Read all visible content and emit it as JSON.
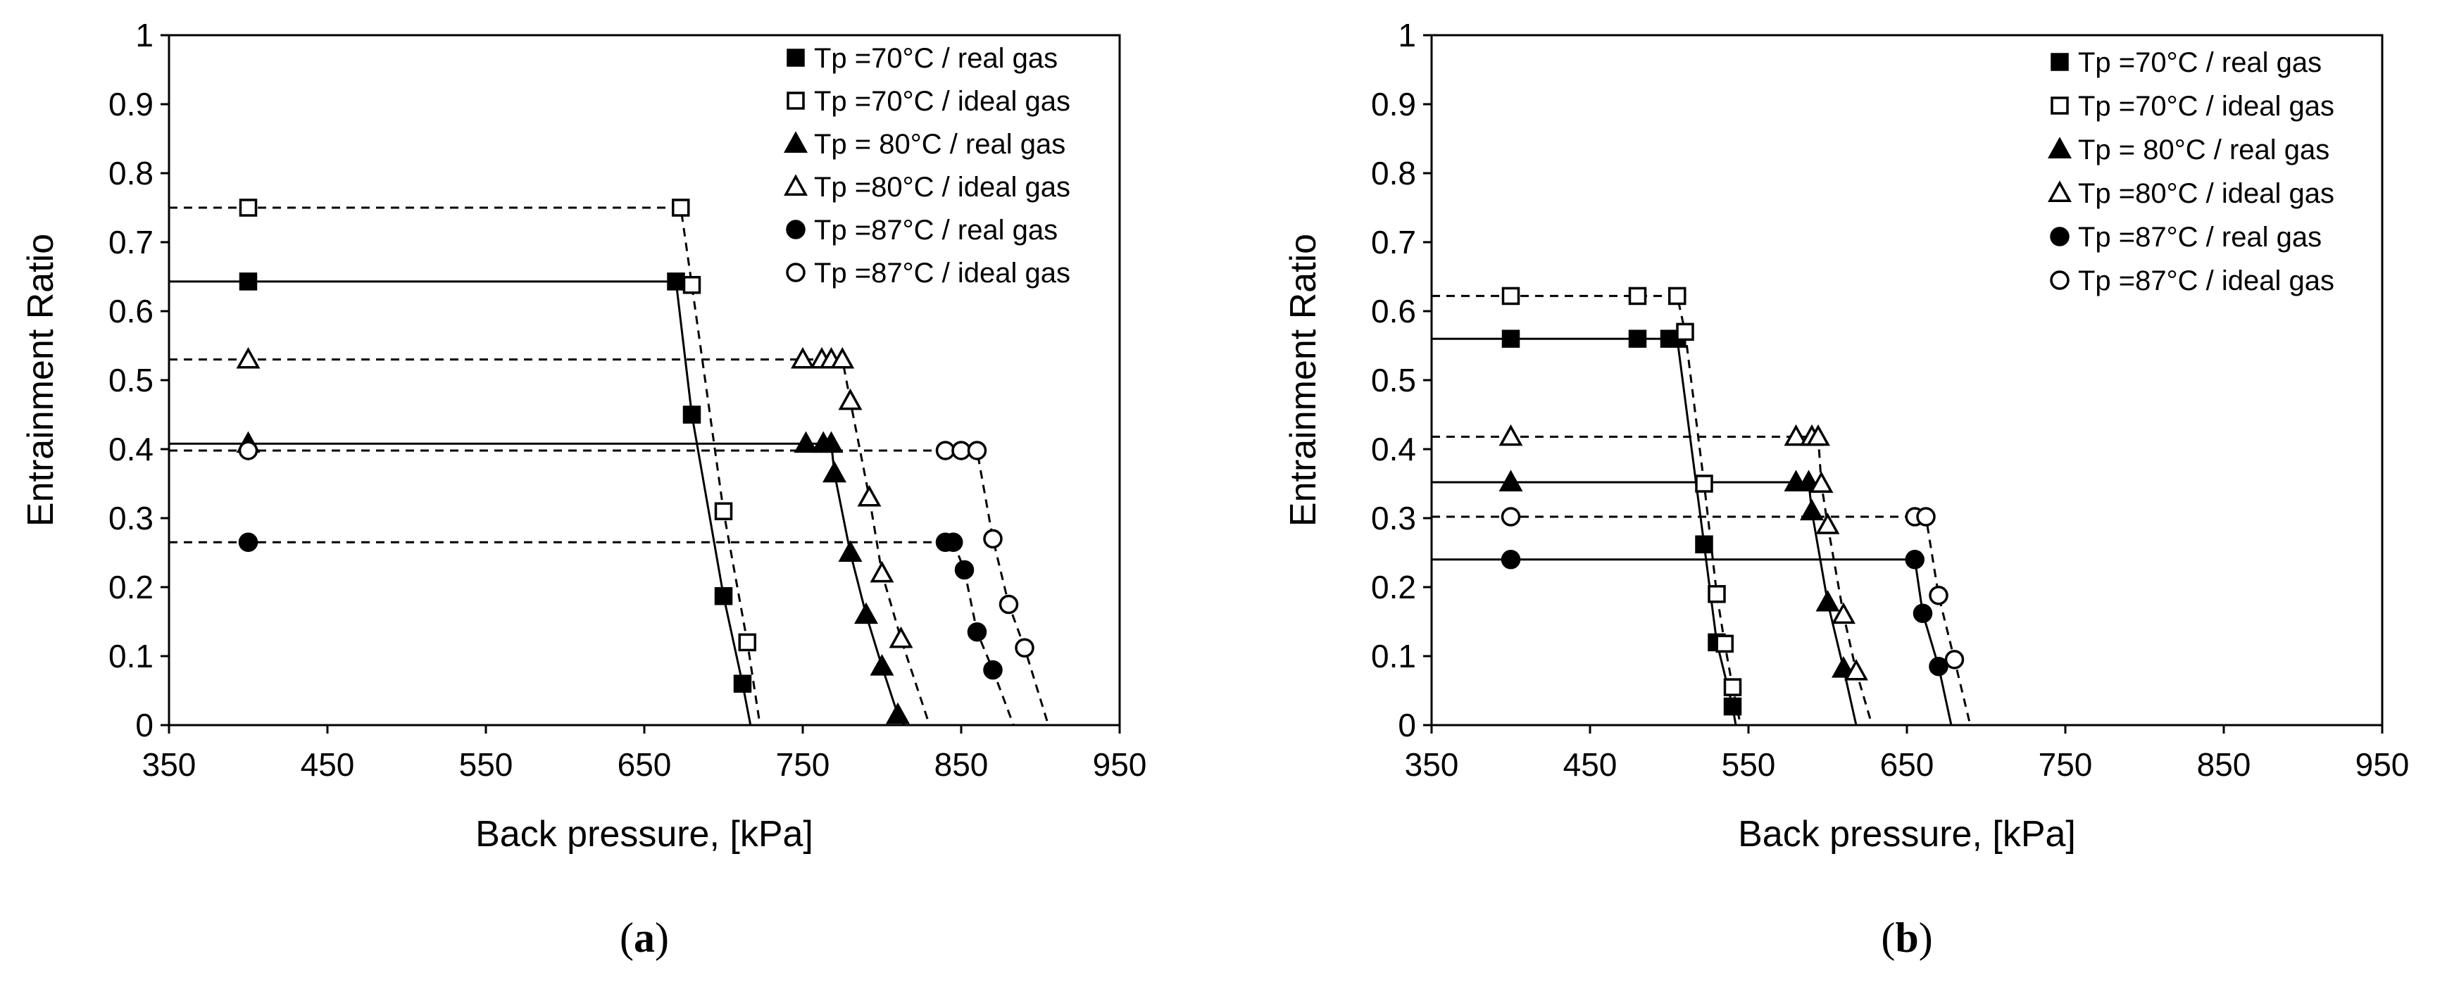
{
  "chart_data": [
    {
      "type": "line",
      "panel_label": "(a)",
      "panel_label_parts": [
        "(",
        "a",
        ")"
      ],
      "xlabel": "Back pressure, [kPa]",
      "ylabel": "Entrainment Ratio",
      "xlim": [
        350,
        950
      ],
      "ylim": [
        0,
        1
      ],
      "xticks": [
        350,
        450,
        550,
        650,
        750,
        850,
        950
      ],
      "yticks": [
        0,
        0.1,
        0.2,
        0.3,
        0.4,
        0.5,
        0.6,
        0.7,
        0.8,
        0.9,
        1
      ],
      "ytick_labels": [
        "0",
        "0.1",
        "0.2",
        "0.3",
        "0.4",
        "0.5",
        "0.6",
        "0.7",
        "0.8",
        "0.9",
        "1"
      ],
      "grid": false,
      "legend_position": "top-right",
      "series": [
        {
          "name": "Tp =70°C / real gas",
          "marker": "square",
          "filled": true,
          "dash": false,
          "points": [
            [
              400,
              0.643
            ],
            [
              670,
              0.643
            ],
            [
              680,
              0.45
            ],
            [
              700,
              0.187
            ],
            [
              712,
              0.06
            ]
          ],
          "curve": [
            [
              350,
              0.643
            ],
            [
              670,
              0.643
            ],
            [
              680,
              0.45
            ],
            [
              700,
              0.187
            ],
            [
              712,
              0.06
            ],
            [
              717,
              0
            ]
          ]
        },
        {
          "name": "Tp =70°C / ideal gas",
          "marker": "square",
          "filled": false,
          "dash": true,
          "points": [
            [
              400,
              0.75
            ],
            [
              673,
              0.75
            ],
            [
              680,
              0.638
            ],
            [
              700,
              0.31
            ],
            [
              715,
              0.12
            ]
          ],
          "curve": [
            [
              350,
              0.75
            ],
            [
              673,
              0.75
            ],
            [
              680,
              0.638
            ],
            [
              700,
              0.31
            ],
            [
              715,
              0.12
            ],
            [
              723,
              0
            ]
          ]
        },
        {
          "name": "Tp = 80°C / real gas",
          "marker": "triangle",
          "filled": true,
          "dash": false,
          "points": [
            [
              400,
              0.408
            ],
            [
              752,
              0.408
            ],
            [
              763,
              0.408
            ],
            [
              768,
              0.408
            ],
            [
              770,
              0.365
            ],
            [
              780,
              0.25
            ],
            [
              790,
              0.16
            ],
            [
              800,
              0.085
            ],
            [
              810,
              0.015
            ]
          ],
          "curve": [
            [
              350,
              0.408
            ],
            [
              768,
              0.408
            ],
            [
              770,
              0.365
            ],
            [
              780,
              0.25
            ],
            [
              790,
              0.16
            ],
            [
              800,
              0.085
            ],
            [
              810,
              0.015
            ],
            [
              814,
              0
            ]
          ]
        },
        {
          "name": "Tp =80°C / ideal gas",
          "marker": "triangle",
          "filled": false,
          "dash": true,
          "points": [
            [
              400,
              0.53
            ],
            [
              750,
              0.53
            ],
            [
              762,
              0.53
            ],
            [
              768,
              0.53
            ],
            [
              775,
              0.53
            ],
            [
              780,
              0.47
            ],
            [
              792,
              0.33
            ],
            [
              800,
              0.22
            ],
            [
              812,
              0.125
            ]
          ],
          "curve": [
            [
              350,
              0.53
            ],
            [
              775,
              0.53
            ],
            [
              780,
              0.47
            ],
            [
              792,
              0.33
            ],
            [
              800,
              0.22
            ],
            [
              812,
              0.125
            ],
            [
              830,
              0
            ]
          ]
        },
        {
          "name": "Tp =87°C / real gas",
          "marker": "circle",
          "filled": true,
          "dash": true,
          "points": [
            [
              400,
              0.265
            ],
            [
              840,
              0.265
            ],
            [
              845,
              0.265
            ],
            [
              852,
              0.225
            ],
            [
              860,
              0.135
            ],
            [
              870,
              0.08
            ]
          ],
          "curve": [
            [
              350,
              0.265
            ],
            [
              845,
              0.265
            ],
            [
              852,
              0.225
            ],
            [
              860,
              0.135
            ],
            [
              870,
              0.08
            ],
            [
              883,
              0
            ]
          ]
        },
        {
          "name": "Tp =87°C / ideal gas",
          "marker": "circle",
          "filled": false,
          "dash": true,
          "points": [
            [
              400,
              0.398
            ],
            [
              840,
              0.398
            ],
            [
              850,
              0.398
            ],
            [
              860,
              0.398
            ],
            [
              870,
              0.27
            ],
            [
              880,
              0.175
            ],
            [
              890,
              0.112
            ]
          ],
          "curve": [
            [
              350,
              0.398
            ],
            [
              860,
              0.398
            ],
            [
              870,
              0.27
            ],
            [
              880,
              0.175
            ],
            [
              890,
              0.112
            ],
            [
              905,
              0
            ]
          ]
        }
      ]
    },
    {
      "type": "line",
      "panel_label": "(b)",
      "panel_label_parts": [
        "(",
        "b",
        ")"
      ],
      "xlabel": "Back pressure, [kPa]",
      "ylabel": "Entrainment Ratio",
      "xlim": [
        350,
        950
      ],
      "ylim": [
        0,
        1
      ],
      "xticks": [
        350,
        450,
        550,
        650,
        750,
        850,
        950
      ],
      "yticks": [
        0,
        0.1,
        0.2,
        0.3,
        0.4,
        0.5,
        0.6,
        0.7,
        0.8,
        0.9,
        1
      ],
      "ytick_labels": [
        "0",
        "0.1",
        "0.2",
        "0.3",
        "0.4",
        "0.5",
        "0.6",
        "0.7",
        "0.8",
        "0.9",
        "1"
      ],
      "grid": false,
      "legend_position": "top-right",
      "series": [
        {
          "name": "Tp =70°C / real gas",
          "marker": "square",
          "filled": true,
          "dash": false,
          "points": [
            [
              400,
              0.56
            ],
            [
              480,
              0.56
            ],
            [
              500,
              0.56
            ],
            [
              505,
              0.56
            ],
            [
              522,
              0.262
            ],
            [
              530,
              0.12
            ],
            [
              540,
              0.027
            ]
          ],
          "curve": [
            [
              350,
              0.56
            ],
            [
              505,
              0.56
            ],
            [
              522,
              0.262
            ],
            [
              530,
              0.12
            ],
            [
              540,
              0.027
            ],
            [
              542,
              0
            ]
          ]
        },
        {
          "name": "Tp =70°C / ideal gas",
          "marker": "square",
          "filled": false,
          "dash": true,
          "points": [
            [
              400,
              0.622
            ],
            [
              480,
              0.622
            ],
            [
              505,
              0.622
            ],
            [
              510,
              0.57
            ],
            [
              522,
              0.35
            ],
            [
              530,
              0.19
            ],
            [
              535,
              0.118
            ],
            [
              540,
              0.055
            ]
          ],
          "curve": [
            [
              350,
              0.622
            ],
            [
              505,
              0.622
            ],
            [
              510,
              0.57
            ],
            [
              522,
              0.35
            ],
            [
              530,
              0.19
            ],
            [
              535,
              0.118
            ],
            [
              540,
              0.055
            ],
            [
              545,
              0
            ]
          ]
        },
        {
          "name": "Tp = 80°C / real gas",
          "marker": "triangle",
          "filled": true,
          "dash": false,
          "points": [
            [
              400,
              0.352
            ],
            [
              580,
              0.352
            ],
            [
              588,
              0.352
            ],
            [
              590,
              0.31
            ],
            [
              600,
              0.178
            ],
            [
              610,
              0.082
            ]
          ],
          "curve": [
            [
              350,
              0.352
            ],
            [
              588,
              0.352
            ],
            [
              590,
              0.31
            ],
            [
              600,
              0.178
            ],
            [
              610,
              0.082
            ],
            [
              618,
              0
            ]
          ]
        },
        {
          "name": "Tp =80°C / ideal gas",
          "marker": "triangle",
          "filled": false,
          "dash": true,
          "points": [
            [
              400,
              0.418
            ],
            [
              580,
              0.418
            ],
            [
              590,
              0.418
            ],
            [
              594,
              0.418
            ],
            [
              596,
              0.35
            ],
            [
              600,
              0.29
            ],
            [
              610,
              0.16
            ],
            [
              618,
              0.078
            ]
          ],
          "curve": [
            [
              350,
              0.418
            ],
            [
              594,
              0.418
            ],
            [
              596,
              0.35
            ],
            [
              600,
              0.29
            ],
            [
              610,
              0.16
            ],
            [
              618,
              0.078
            ],
            [
              628,
              0
            ]
          ]
        },
        {
          "name": "Tp =87°C / real gas",
          "marker": "circle",
          "filled": true,
          "dash": false,
          "points": [
            [
              400,
              0.24
            ],
            [
              655,
              0.24
            ],
            [
              660,
              0.162
            ],
            [
              670,
              0.085
            ]
          ],
          "curve": [
            [
              350,
              0.24
            ],
            [
              655,
              0.24
            ],
            [
              660,
              0.162
            ],
            [
              670,
              0.085
            ],
            [
              678,
              0
            ]
          ]
        },
        {
          "name": "Tp =87°C / ideal gas",
          "marker": "circle",
          "filled": false,
          "dash": true,
          "points": [
            [
              400,
              0.302
            ],
            [
              655,
              0.302
            ],
            [
              662,
              0.302
            ],
            [
              670,
              0.188
            ],
            [
              680,
              0.095
            ]
          ],
          "curve": [
            [
              350,
              0.302
            ],
            [
              662,
              0.302
            ],
            [
              670,
              0.188
            ],
            [
              680,
              0.095
            ],
            [
              690,
              0
            ]
          ]
        }
      ]
    }
  ]
}
